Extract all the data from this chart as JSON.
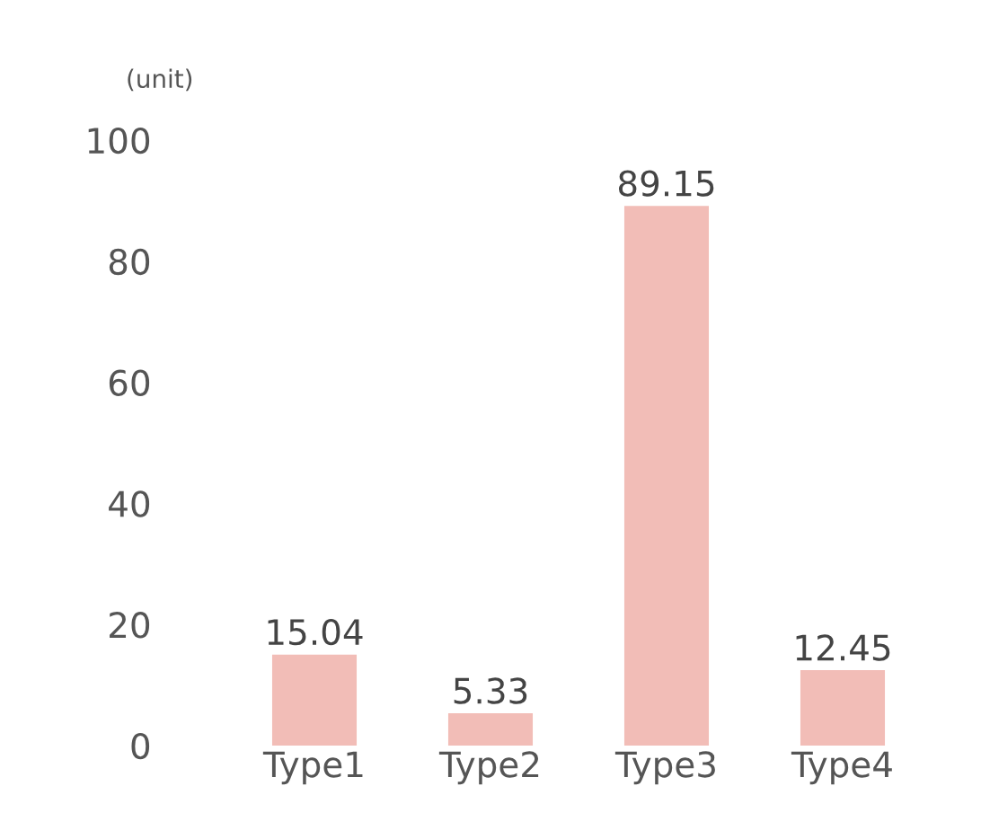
{
  "chart_data": {
    "type": "bar",
    "ylabel": "(unit)",
    "categories": [
      "Type1",
      "Type2",
      "Type3",
      "Type4"
    ],
    "values": [
      15.04,
      5.33,
      89.15,
      12.45
    ],
    "color": "#f2bdb7",
    "ylim": [
      0,
      100
    ],
    "yticks": [
      0,
      20,
      40,
      60,
      80,
      100
    ],
    "grid": false,
    "data_labels": true
  }
}
